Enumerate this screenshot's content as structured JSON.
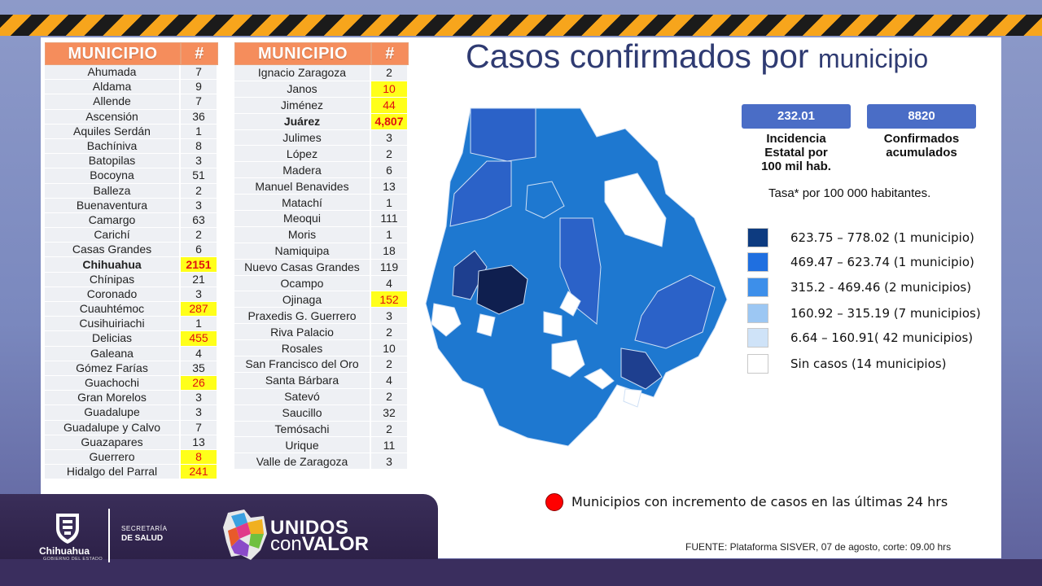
{
  "title": {
    "main": "Casos confirmados por",
    "small": "municipio"
  },
  "table_left": {
    "header": {
      "municipio": "MUNICIPIO",
      "num": "#"
    },
    "rows": [
      {
        "name": "Ahumada",
        "value": "7",
        "highlight": false,
        "bold": false
      },
      {
        "name": "Aldama",
        "value": "9",
        "highlight": false,
        "bold": false
      },
      {
        "name": "Allende",
        "value": "7",
        "highlight": false,
        "bold": false
      },
      {
        "name": "Ascensión",
        "value": "36",
        "highlight": false,
        "bold": false
      },
      {
        "name": "Aquiles Serdán",
        "value": "1",
        "highlight": false,
        "bold": false
      },
      {
        "name": "Bachíniva",
        "value": "8",
        "highlight": false,
        "bold": false
      },
      {
        "name": "Batopilas",
        "value": "3",
        "highlight": false,
        "bold": false
      },
      {
        "name": "Bocoyna",
        "value": "51",
        "highlight": false,
        "bold": false
      },
      {
        "name": "Balleza",
        "value": "2",
        "highlight": false,
        "bold": false
      },
      {
        "name": "Buenaventura",
        "value": "3",
        "highlight": false,
        "bold": false
      },
      {
        "name": "Camargo",
        "value": "63",
        "highlight": false,
        "bold": false
      },
      {
        "name": "Carichí",
        "value": "2",
        "highlight": false,
        "bold": false
      },
      {
        "name": "Casas Grandes",
        "value": "6",
        "highlight": false,
        "bold": false
      },
      {
        "name": "Chihuahua",
        "value": "2151",
        "highlight": true,
        "bold": true
      },
      {
        "name": "Chínipas",
        "value": "21",
        "highlight": false,
        "bold": false
      },
      {
        "name": "Coronado",
        "value": "3",
        "highlight": false,
        "bold": false
      },
      {
        "name": "Cuauhtémoc",
        "value": "287",
        "highlight": true,
        "bold": false
      },
      {
        "name": "Cusihuiriachi",
        "value": "1",
        "highlight": false,
        "bold": false
      },
      {
        "name": "Delicias",
        "value": "455",
        "highlight": true,
        "bold": false
      },
      {
        "name": "Galeana",
        "value": "4",
        "highlight": false,
        "bold": false
      },
      {
        "name": "Gómez Farías",
        "value": "35",
        "highlight": false,
        "bold": false
      },
      {
        "name": "Guachochi",
        "value": "26",
        "highlight": true,
        "bold": false
      },
      {
        "name": "Gran Morelos",
        "value": "3",
        "highlight": false,
        "bold": false
      },
      {
        "name": "Guadalupe",
        "value": "3",
        "highlight": false,
        "bold": false
      },
      {
        "name": "Guadalupe  y Calvo",
        "value": "7",
        "highlight": false,
        "bold": false
      },
      {
        "name": "Guazapares",
        "value": "13",
        "highlight": false,
        "bold": false
      },
      {
        "name": "Guerrero",
        "value": "8",
        "highlight": true,
        "bold": false
      },
      {
        "name": "Hidalgo del Parral",
        "value": "241",
        "highlight": true,
        "bold": false
      }
    ]
  },
  "table_right": {
    "header": {
      "municipio": "MUNICIPIO",
      "num": "#"
    },
    "rows": [
      {
        "name": "Ignacio Zaragoza",
        "value": "2",
        "highlight": false,
        "bold": false
      },
      {
        "name": "Janos",
        "value": "10",
        "highlight": true,
        "bold": false
      },
      {
        "name": "Jiménez",
        "value": "44",
        "highlight": true,
        "bold": false
      },
      {
        "name": "Juárez",
        "value": "4,807",
        "highlight": true,
        "bold": true
      },
      {
        "name": "Julimes",
        "value": "3",
        "highlight": false,
        "bold": false
      },
      {
        "name": "López",
        "value": "2",
        "highlight": false,
        "bold": false
      },
      {
        "name": "Madera",
        "value": "6",
        "highlight": false,
        "bold": false
      },
      {
        "name": "Manuel Benavides",
        "value": "13",
        "highlight": false,
        "bold": false
      },
      {
        "name": "Matachí",
        "value": "1",
        "highlight": false,
        "bold": false
      },
      {
        "name": "Meoqui",
        "value": "111",
        "highlight": false,
        "bold": false
      },
      {
        "name": "Moris",
        "value": "1",
        "highlight": false,
        "bold": false
      },
      {
        "name": "Namiquipa",
        "value": "18",
        "highlight": false,
        "bold": false
      },
      {
        "name": "Nuevo Casas Grandes",
        "value": "119",
        "highlight": false,
        "bold": false
      },
      {
        "name": "Ocampo",
        "value": "4",
        "highlight": false,
        "bold": false
      },
      {
        "name": "Ojinaga",
        "value": "152",
        "highlight": true,
        "bold": false
      },
      {
        "name": "Praxedis G. Guerrero",
        "value": "3",
        "highlight": false,
        "bold": false
      },
      {
        "name": "Riva Palacio",
        "value": "2",
        "highlight": false,
        "bold": false
      },
      {
        "name": "Rosales",
        "value": "10",
        "highlight": false,
        "bold": false
      },
      {
        "name": "San Francisco del Oro",
        "value": "2",
        "highlight": false,
        "bold": false
      },
      {
        "name": "Santa Bárbara",
        "value": "4",
        "highlight": false,
        "bold": false
      },
      {
        "name": "Satevó",
        "value": "2",
        "highlight": false,
        "bold": false
      },
      {
        "name": "Saucillo",
        "value": "32",
        "highlight": false,
        "bold": false
      },
      {
        "name": "Temósachi",
        "value": "2",
        "highlight": false,
        "bold": false
      },
      {
        "name": "Urique",
        "value": "11",
        "highlight": false,
        "bold": false
      },
      {
        "name": "Valle de Zaragoza",
        "value": "3",
        "highlight": false,
        "bold": false
      }
    ]
  },
  "stats": {
    "incidence_value": "232.01",
    "incidence_label": [
      "Incidencia",
      "Estatal por",
      "100 mil hab."
    ],
    "confirmed_value": "8820",
    "confirmed_label": [
      "Confirmados",
      "acumulados"
    ]
  },
  "tasa_note": "Tasa* por 100 000 habitantes.",
  "legend": [
    {
      "label": "623.75 – 778.02 (1 municipio)",
      "color": "#0d3b80"
    },
    {
      "label": "469.47 – 623.74 (1 municipio)",
      "color": "#1f6fe0"
    },
    {
      "label": "315.2  - 469.46 (2 municipios)",
      "color": "#3d8fea"
    },
    {
      "label": "160.92 – 315.19 (7 municipios)",
      "color": "#9cc7f3"
    },
    {
      "label": "6.64 – 160.91( 42 municipios)",
      "color": "#cfe3f8"
    },
    {
      "label": "Sin casos (14 municipios)",
      "color": "#ffffff"
    }
  ],
  "map_colors": {
    "base": "#1e78d0",
    "medium": "#2b62c8",
    "dark": "#1e3f8f",
    "darkest": "#0f1f4f",
    "empty": "#ffffff",
    "border": "#cfe0f5"
  },
  "increment_note": "Municipios con incremento de casos en las últimas 24 hrs",
  "source": "FUENTE: Plataforma SISVER, 07 de agosto, corte: 09.00 hrs",
  "footer": {
    "gov_name": "Chihuahua",
    "gov_sub": "GOBIERNO DEL ESTADO",
    "secretaria_line1": "SECRETARÍA",
    "secretaria_line2": "DE SALUD",
    "unidos_line1": "UNIDOS",
    "unidos_con": "con",
    "unidos_valor": "VALOR"
  }
}
